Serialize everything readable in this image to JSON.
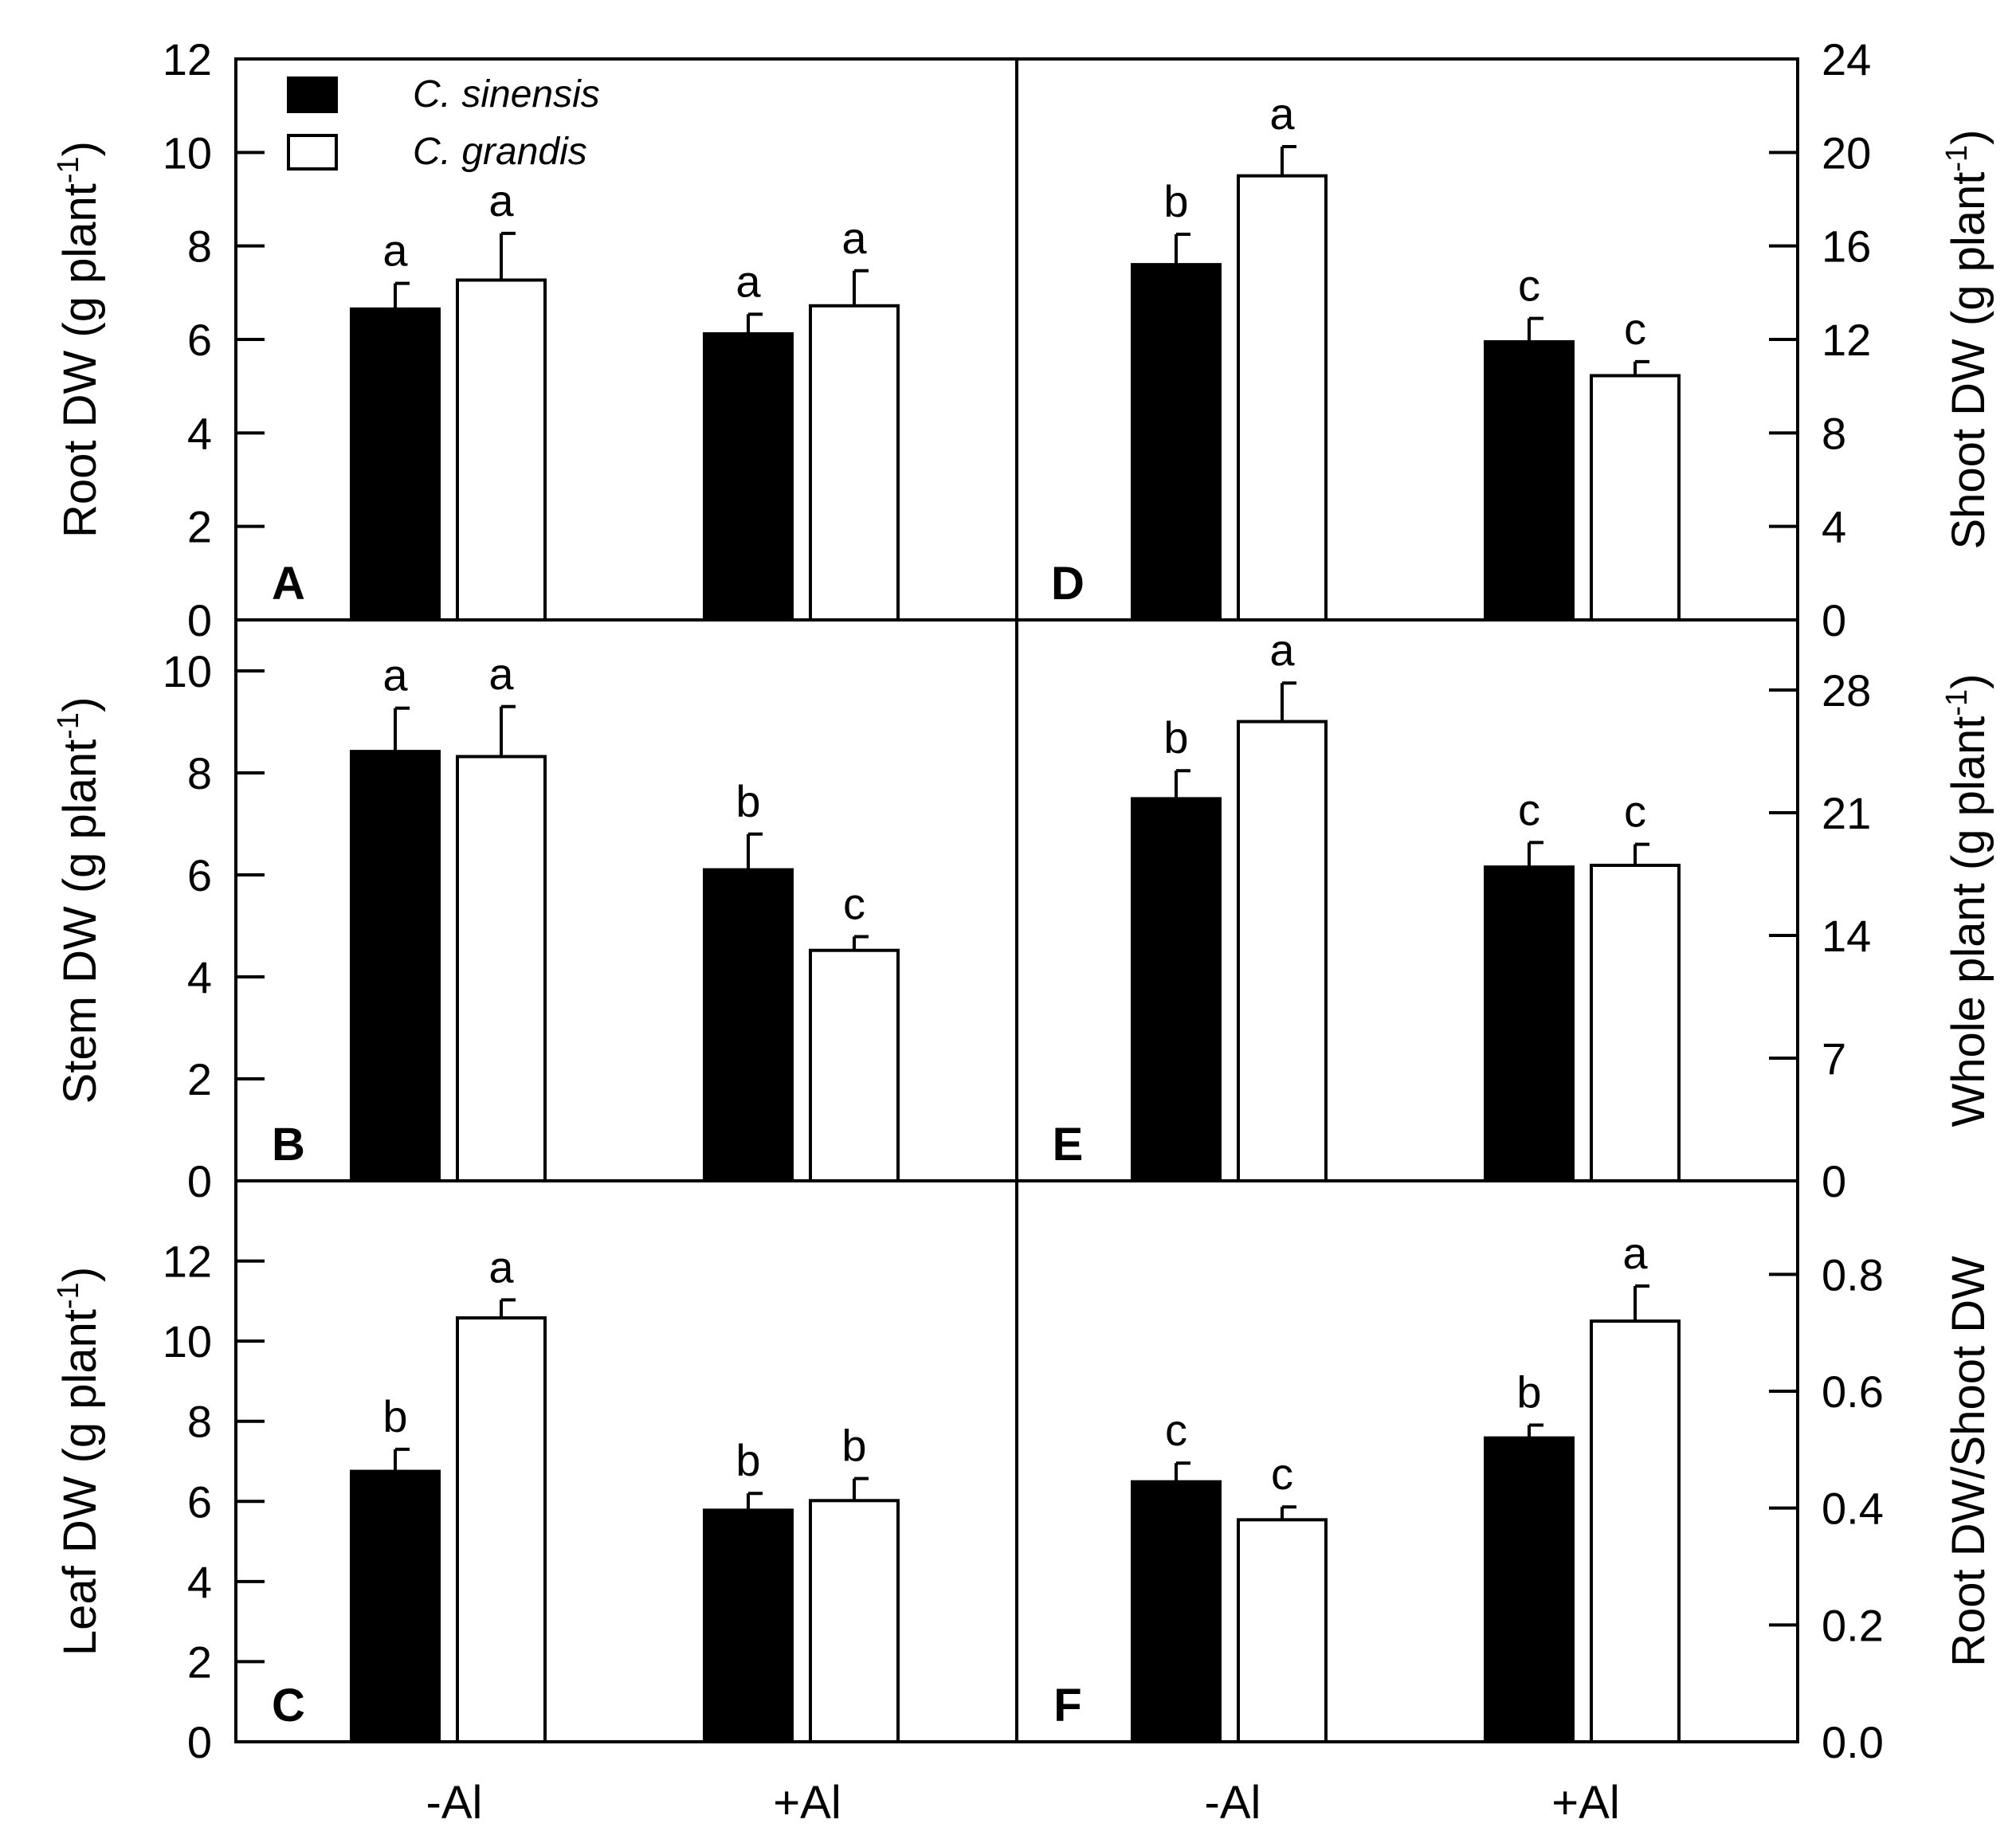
{
  "legend": {
    "series": [
      {
        "name": "C. sinensis",
        "swatch": "filled"
      },
      {
        "name": "C. grandis",
        "swatch": "open"
      }
    ]
  },
  "x_tick_labels": [
    "-Al",
    "+Al",
    "-Al",
    "+Al"
  ],
  "colors": {
    "ink": "#000000",
    "open_fill": "#ffffff"
  },
  "chart_data": [
    {
      "type": "bar",
      "panel": "A",
      "axis_side": "left",
      "title": "",
      "ylabel": "Root DW (g plant-1)",
      "ylabel_main": "Root DW (g plant",
      "ylabel_sup": "-1",
      "ylabel_close": ")",
      "categories": [
        "-Al",
        "+Al"
      ],
      "ylim": [
        0,
        12
      ],
      "yticks": [
        "0",
        "2",
        "4",
        "6",
        "8",
        "10",
        "12"
      ],
      "series": [
        {
          "name": "C. sinensis",
          "values": [
            6.65,
            6.12
          ],
          "errors": [
            0.55,
            0.42
          ],
          "letters": [
            "a",
            "a"
          ]
        },
        {
          "name": "C. grandis",
          "values": [
            7.27,
            6.72
          ],
          "errors": [
            1.0,
            0.75
          ],
          "letters": [
            "a",
            "a"
          ]
        }
      ]
    },
    {
      "type": "bar",
      "panel": "B",
      "axis_side": "left",
      "title": "",
      "ylabel": "Stem DW (g plant-1)",
      "ylabel_main": "Stem DW (g plant",
      "ylabel_sup": "-1",
      "ylabel_close": ")",
      "categories": [
        "-Al",
        "+Al"
      ],
      "ylim": [
        0,
        11
      ],
      "yticks": [
        "0",
        "2",
        "4",
        "6",
        "8",
        "10"
      ],
      "series": [
        {
          "name": "C. sinensis",
          "values": [
            8.42,
            6.1
          ],
          "errors": [
            0.85,
            0.7
          ],
          "letters": [
            "a",
            "b"
          ]
        },
        {
          "name": "C. grandis",
          "values": [
            8.32,
            4.52
          ],
          "errors": [
            0.98,
            0.27
          ],
          "letters": [
            "a",
            "c"
          ]
        }
      ]
    },
    {
      "type": "bar",
      "panel": "C",
      "axis_side": "left",
      "title": "",
      "ylabel": "Leaf DW (g plant-1)",
      "ylabel_main": "Leaf DW (g plant",
      "ylabel_sup": "-1",
      "ylabel_close": ")",
      "categories": [
        "-Al",
        "+Al"
      ],
      "ylim": [
        0,
        14
      ],
      "yticks": [
        "0",
        "2",
        "4",
        "6",
        "8",
        "10",
        "12"
      ],
      "series": [
        {
          "name": "C. sinensis",
          "values": [
            6.75,
            5.78
          ],
          "errors": [
            0.55,
            0.42
          ],
          "letters": [
            "b",
            "b"
          ]
        },
        {
          "name": "C. grandis",
          "values": [
            10.58,
            6.02
          ],
          "errors": [
            0.45,
            0.55
          ],
          "letters": [
            "a",
            "b"
          ]
        }
      ]
    },
    {
      "type": "bar",
      "panel": "D",
      "axis_side": "right",
      "title": "",
      "ylabel": "Shoot DW (g plant-1)",
      "ylabel_main": "Shoot DW (g plant",
      "ylabel_sup": "-1",
      "ylabel_close": ")",
      "categories": [
        "-Al",
        "+Al"
      ],
      "ylim": [
        0,
        24
      ],
      "yticks": [
        "0",
        "4",
        "8",
        "12",
        "16",
        "20",
        "24"
      ],
      "series": [
        {
          "name": "C. sinensis",
          "values": [
            15.2,
            11.9
          ],
          "errors": [
            1.3,
            1.0
          ],
          "letters": [
            "b",
            "c"
          ]
        },
        {
          "name": "C. grandis",
          "values": [
            19.0,
            10.45
          ],
          "errors": [
            1.25,
            0.6
          ],
          "letters": [
            "a",
            "c"
          ]
        }
      ]
    },
    {
      "type": "bar",
      "panel": "E",
      "axis_side": "right",
      "title": "",
      "ylabel": "Whole plant (g plant-1)",
      "ylabel_main": "Whole plant (g plant",
      "ylabel_sup": "-1",
      "ylabel_close": ")",
      "categories": [
        "-Al",
        "+Al"
      ],
      "ylim": [
        0,
        32
      ],
      "yticks": [
        "0",
        "7",
        "14",
        "21",
        "28"
      ],
      "series": [
        {
          "name": "C. sinensis",
          "values": [
            21.8,
            17.9
          ],
          "errors": [
            1.6,
            1.4
          ],
          "letters": [
            "b",
            "c"
          ]
        },
        {
          "name": "C. grandis",
          "values": [
            26.2,
            18.0
          ],
          "errors": [
            2.2,
            1.2
          ],
          "letters": [
            "a",
            "c"
          ]
        }
      ]
    },
    {
      "type": "bar",
      "panel": "F",
      "axis_side": "right",
      "title": "",
      "ylabel": "Root DW/Shoot DW",
      "ylabel_main": "Root DW/Shoot DW",
      "ylabel_sup": "",
      "ylabel_close": "",
      "categories": [
        "-Al",
        "+Al"
      ],
      "ylim": [
        0,
        0.96
      ],
      "yticks": [
        "0.0",
        "0.2",
        "0.4",
        "0.6",
        "0.8"
      ],
      "series": [
        {
          "name": "C. sinensis",
          "values": [
            0.445,
            0.52
          ],
          "errors": [
            0.032,
            0.022
          ],
          "letters": [
            "c",
            "b"
          ]
        },
        {
          "name": "C. grandis",
          "values": [
            0.38,
            0.72
          ],
          "errors": [
            0.022,
            0.06
          ],
          "letters": [
            "c",
            "a"
          ]
        }
      ]
    }
  ]
}
